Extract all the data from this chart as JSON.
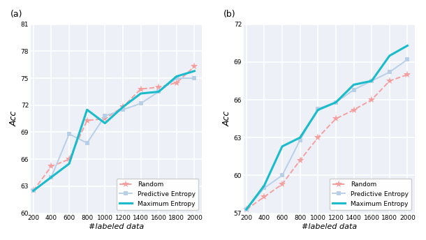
{
  "x": [
    200,
    400,
    600,
    800,
    1000,
    1200,
    1400,
    1600,
    1800,
    2000
  ],
  "subplot_a": {
    "title": "(a)",
    "xlabel": "#labeled data",
    "ylabel": "Acc",
    "ylim": [
      60,
      81
    ],
    "yticks": [
      60,
      63,
      66,
      69,
      72,
      75,
      78,
      81
    ],
    "random": [
      62.5,
      65.2,
      66.0,
      70.3,
      70.5,
      71.8,
      73.8,
      74.0,
      74.5,
      76.3
    ],
    "pred_ent": [
      62.5,
      64.0,
      68.8,
      67.8,
      70.8,
      71.5,
      72.2,
      73.5,
      75.0,
      75.0
    ],
    "max_ent": [
      62.5,
      64.0,
      65.5,
      71.5,
      70.0,
      71.8,
      73.3,
      73.5,
      75.2,
      75.8
    ]
  },
  "subplot_b": {
    "title": "(b)",
    "xlabel": "#labeled data",
    "ylabel": "Acc",
    "ylim": [
      57,
      72
    ],
    "yticks": [
      57,
      60,
      63,
      66,
      69,
      72
    ],
    "random": [
      57.3,
      58.3,
      59.3,
      61.2,
      63.0,
      64.5,
      65.2,
      66.0,
      67.5,
      68.0
    ],
    "pred_ent": [
      57.3,
      59.0,
      60.0,
      62.8,
      65.3,
      65.8,
      66.8,
      67.5,
      68.2,
      69.2
    ],
    "max_ent": [
      57.3,
      59.2,
      62.3,
      63.0,
      65.2,
      65.8,
      67.2,
      67.5,
      69.5,
      70.3
    ]
  },
  "colors": {
    "random": "#f4a0a0",
    "pred_ent": "#b8cfe8",
    "max_ent": "#1abccc"
  },
  "ax_facecolor": "#edf1f7",
  "fig_facecolor": "#ffffff",
  "grid_color": "#ffffff"
}
